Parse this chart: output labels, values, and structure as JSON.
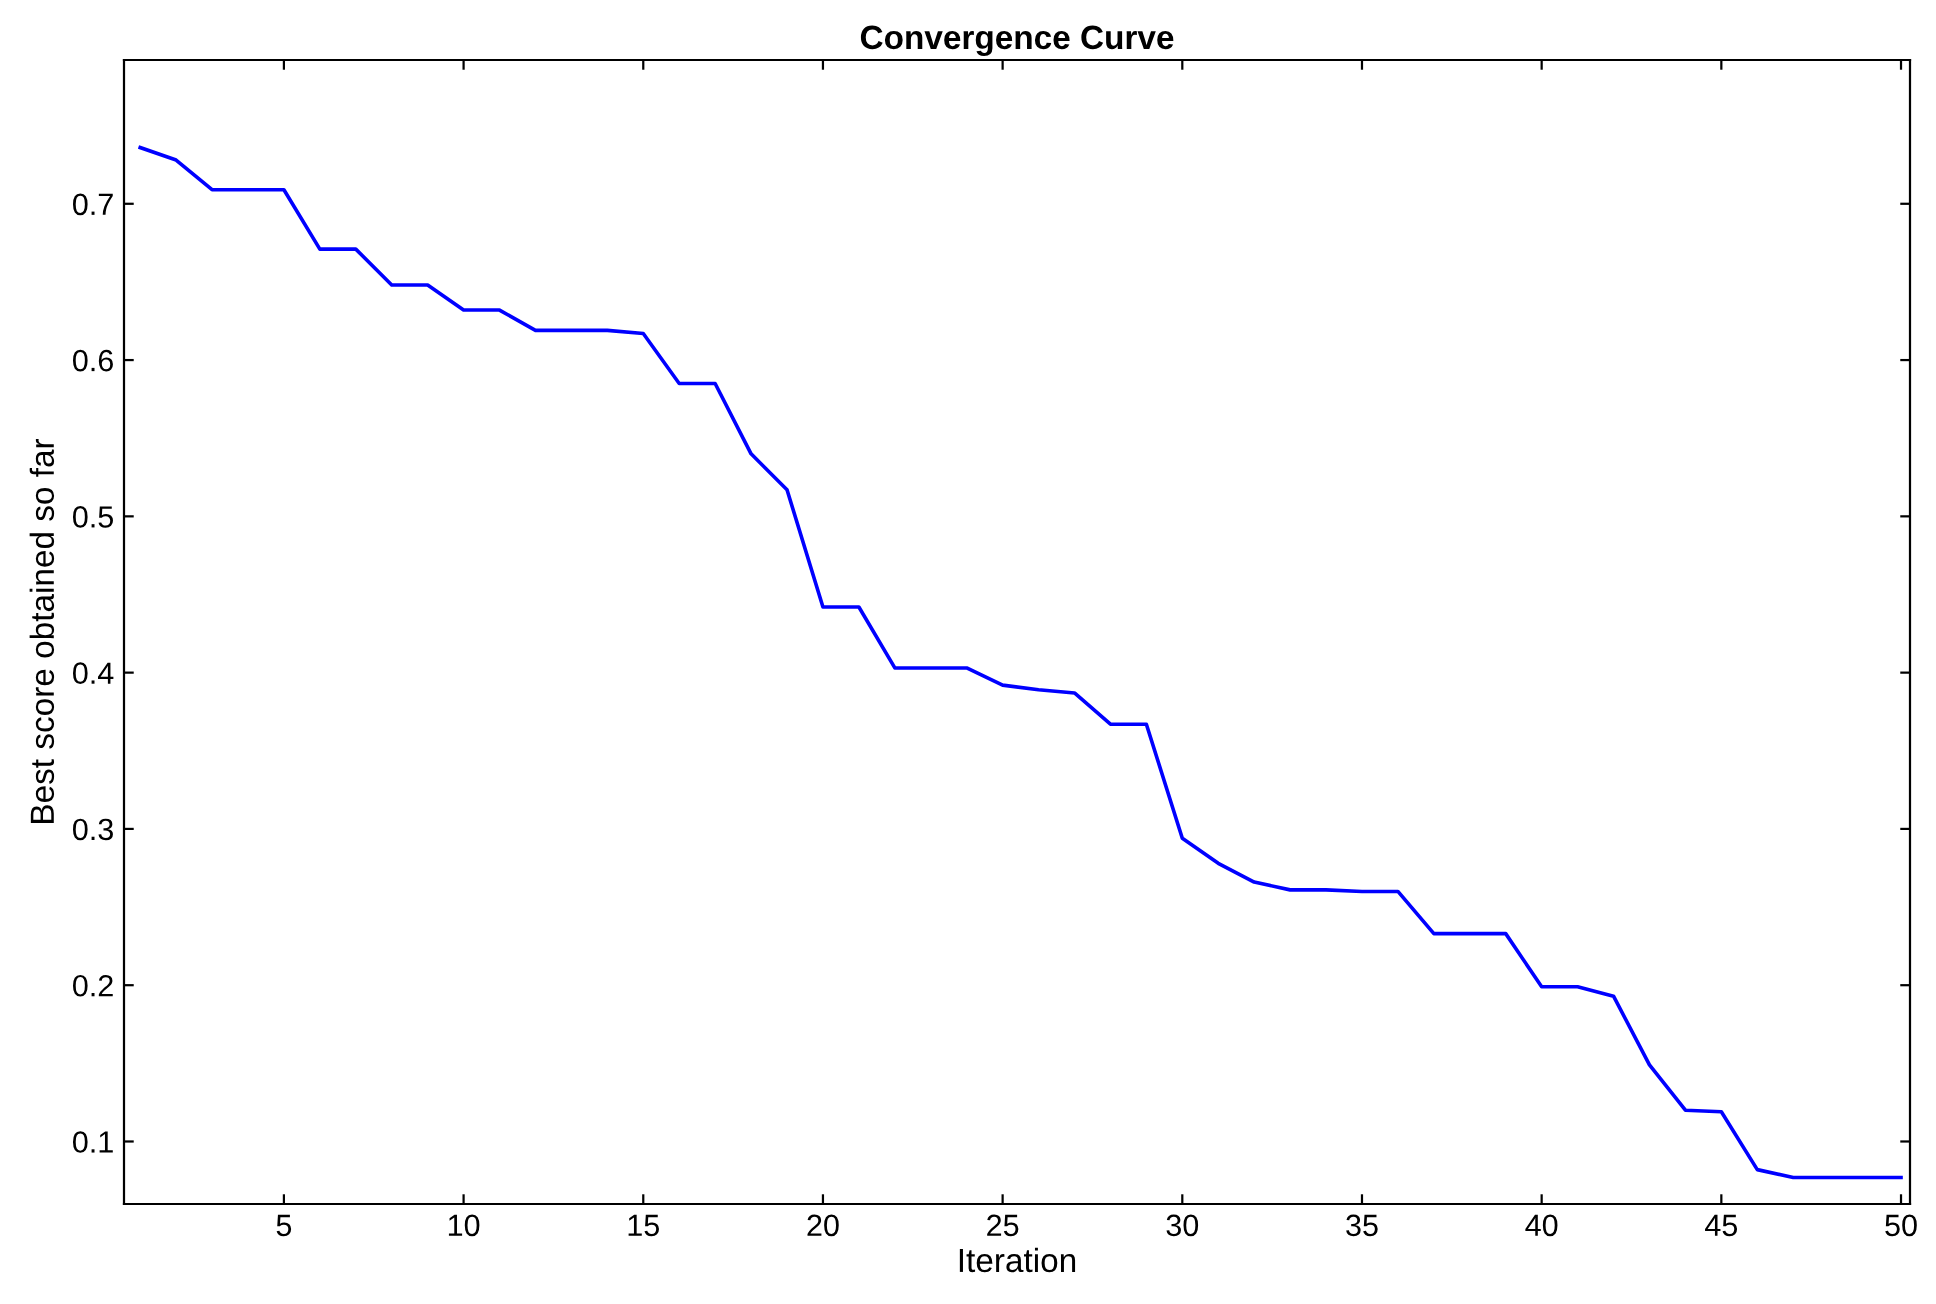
{
  "chart_data": {
    "type": "line",
    "title": "Convergence Curve",
    "xlabel": "Iteration",
    "ylabel": "Best score obtained so far",
    "x": [
      1,
      2,
      3,
      4,
      5,
      6,
      7,
      8,
      9,
      10,
      11,
      12,
      13,
      14,
      15,
      16,
      17,
      18,
      19,
      20,
      21,
      22,
      23,
      24,
      25,
      26,
      27,
      28,
      29,
      30,
      31,
      32,
      33,
      34,
      35,
      36,
      37,
      38,
      39,
      40,
      41,
      42,
      43,
      44,
      45,
      46,
      47,
      48,
      49,
      50
    ],
    "series": [
      {
        "color": "#0000ff",
        "values": [
          0.736,
          0.728,
          0.709,
          0.709,
          0.709,
          0.671,
          0.671,
          0.648,
          0.648,
          0.632,
          0.632,
          0.619,
          0.619,
          0.619,
          0.617,
          0.585,
          0.585,
          0.54,
          0.517,
          0.442,
          0.442,
          0.403,
          0.403,
          0.403,
          0.392,
          0.389,
          0.387,
          0.367,
          0.367,
          0.294,
          0.278,
          0.266,
          0.261,
          0.261,
          0.26,
          0.26,
          0.233,
          0.233,
          0.233,
          0.199,
          0.199,
          0.193,
          0.149,
          0.12,
          0.119,
          0.082,
          0.077,
          0.077,
          0.077,
          0.077
        ]
      }
    ],
    "xlim": [
      0.55,
      50.25
    ],
    "ylim": [
      0.06,
      0.792
    ],
    "xticks": [
      5,
      10,
      15,
      20,
      25,
      30,
      35,
      40,
      45,
      50
    ],
    "yticks": [
      0.1,
      0.2,
      0.3,
      0.4,
      0.5,
      0.6,
      0.7
    ],
    "grid": false,
    "legend": false,
    "marker": "none",
    "line_style": "solid"
  }
}
